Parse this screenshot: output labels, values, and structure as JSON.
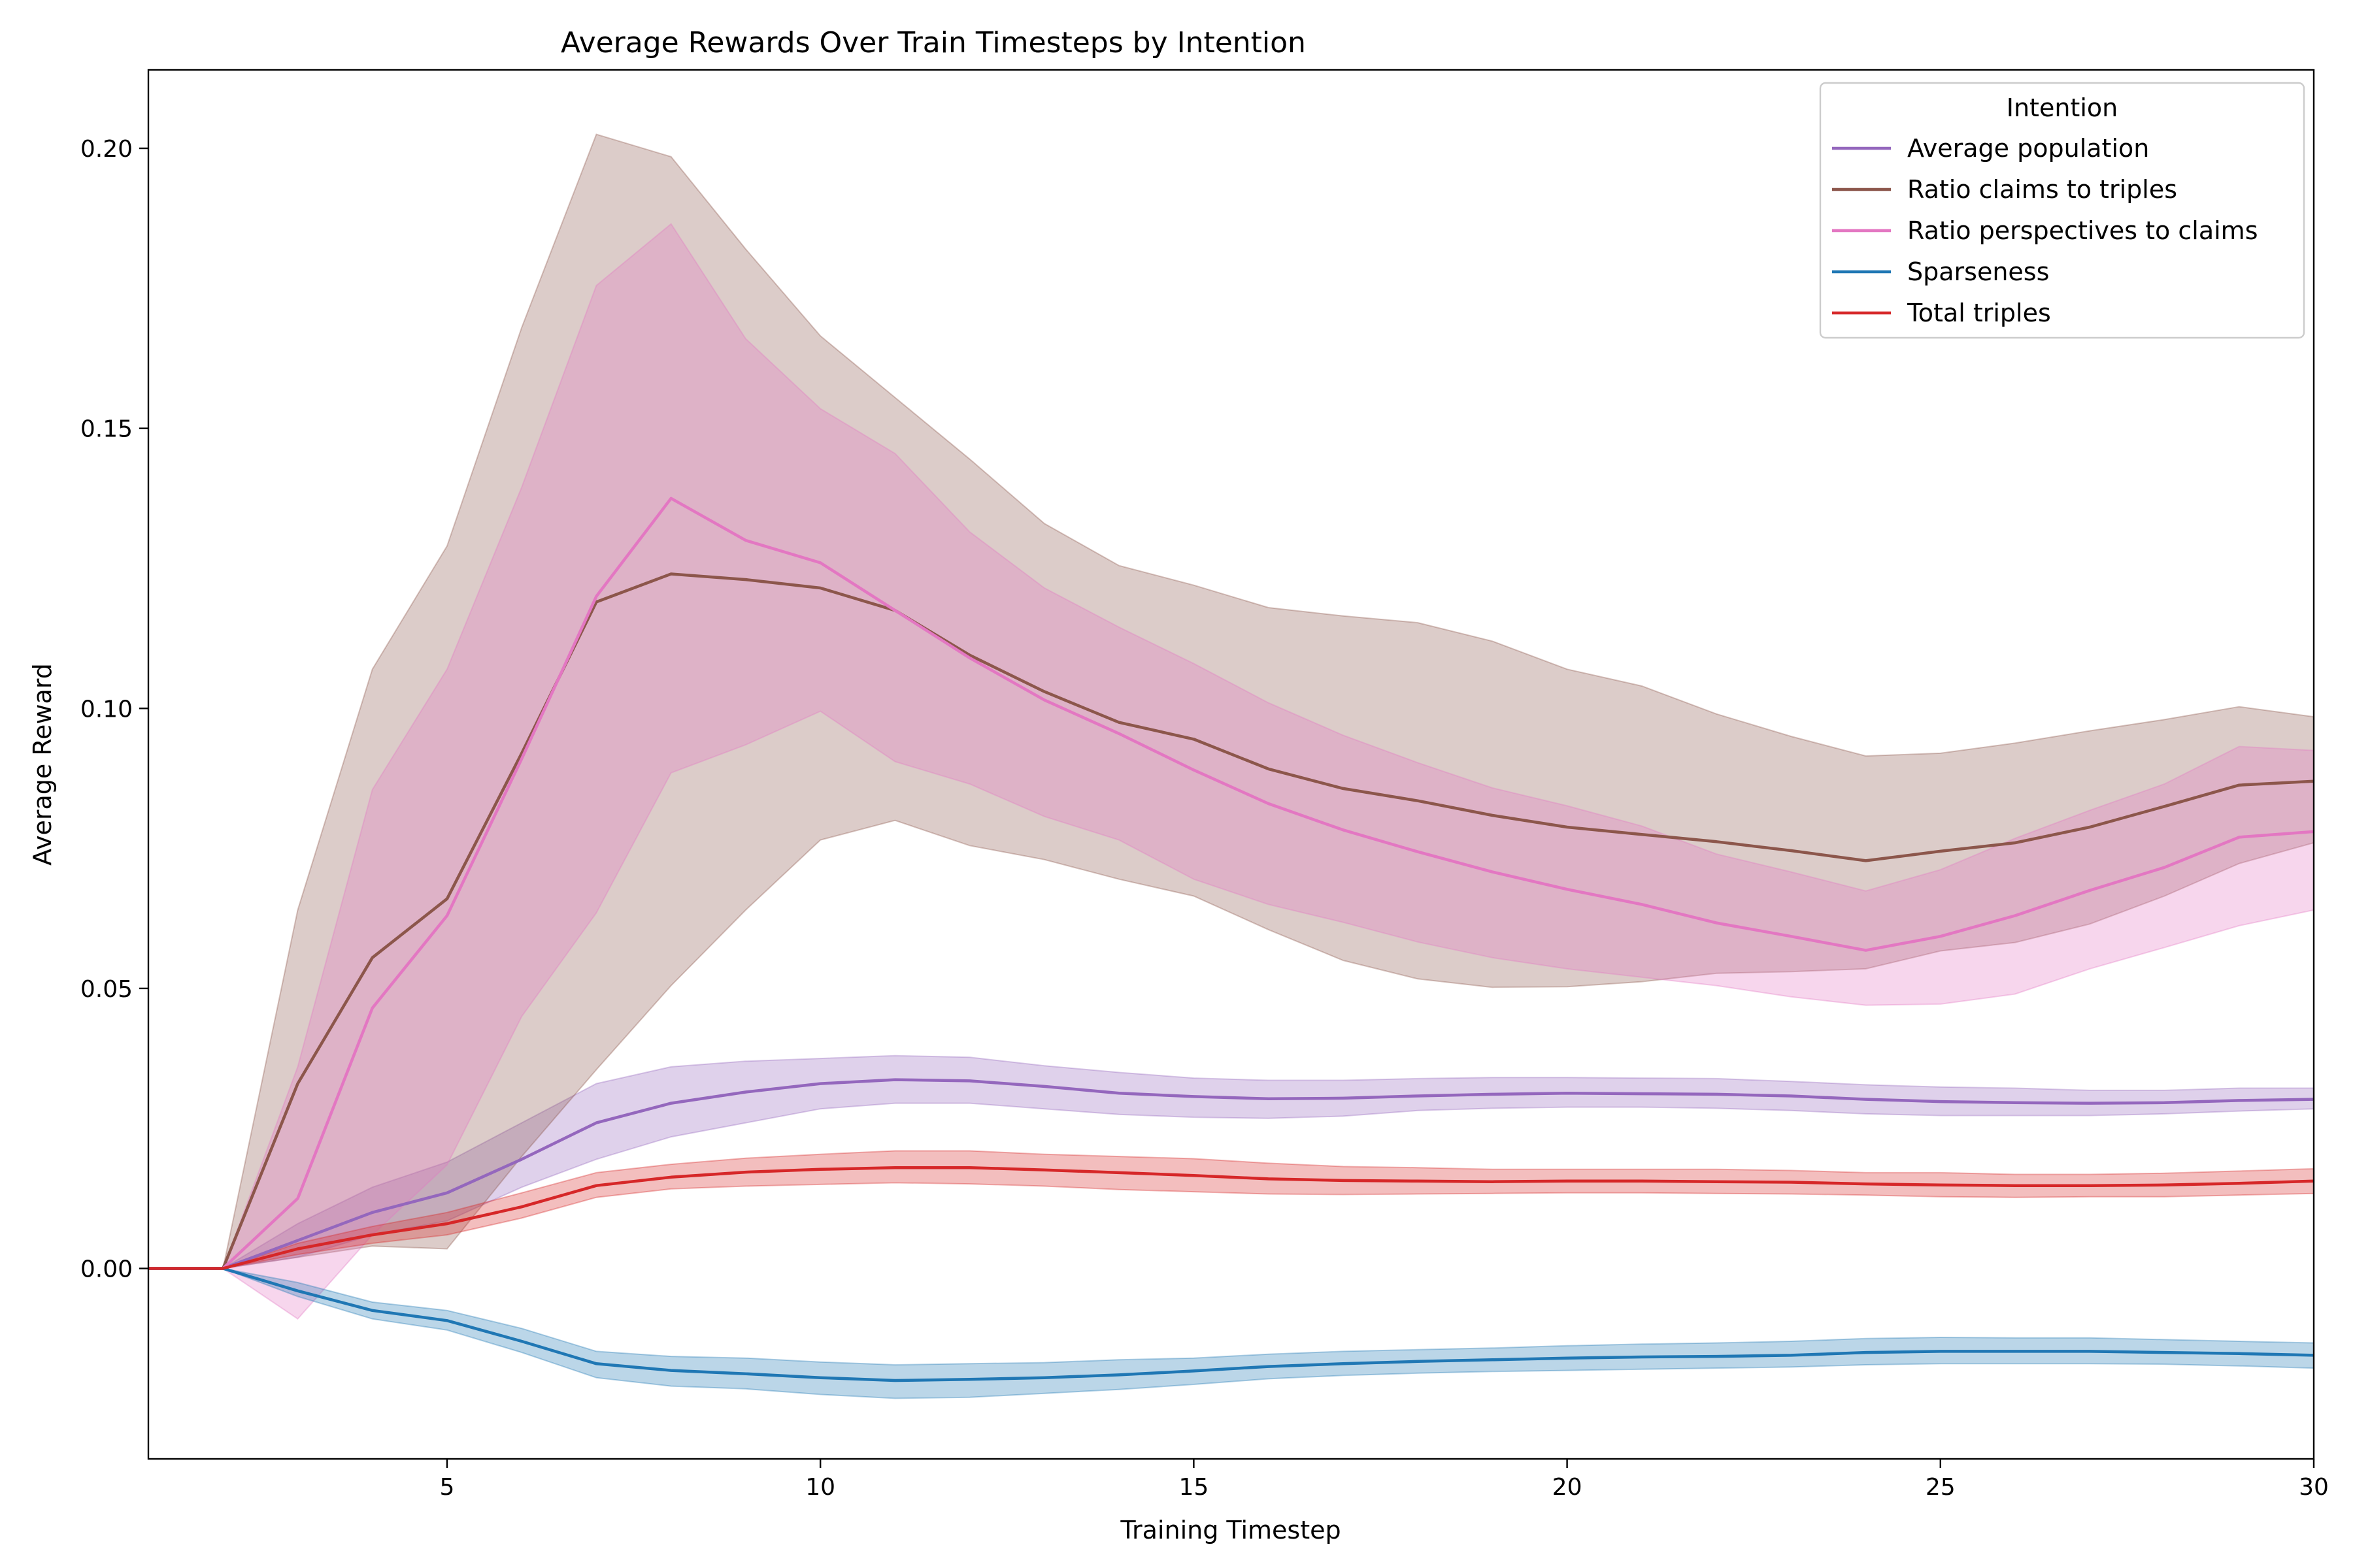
{
  "chart_data": {
    "type": "line",
    "title": "Average Rewards Over Train Timesteps by Intention",
    "xlabel": "Training Timestep",
    "ylabel": "Average Reward",
    "xlim": [
      1,
      30
    ],
    "ylim": [
      -0.034,
      0.214
    ],
    "xticks": [
      5,
      10,
      15,
      20,
      25,
      30
    ],
    "xtick_labels": [
      "5",
      "10",
      "15",
      "20",
      "25",
      "30"
    ],
    "yticks": [
      0.0,
      0.05,
      0.1,
      0.15,
      0.2
    ],
    "ytick_labels": [
      "0.00",
      "0.05",
      "0.10",
      "0.15",
      "0.20"
    ],
    "grid": false,
    "legend": {
      "title": "Intention",
      "placement": "top-right"
    },
    "x": [
      1,
      2,
      3,
      4,
      5,
      6,
      7,
      8,
      9,
      10,
      11,
      12,
      13,
      14,
      15,
      16,
      17,
      18,
      19,
      20,
      21,
      22,
      23,
      24,
      25,
      26,
      27,
      28,
      29,
      30
    ],
    "series": [
      {
        "name": "Average population",
        "color": "#9467bd",
        "values": [
          0,
          0,
          0.005,
          0.01,
          0.0135,
          0.0195,
          0.026,
          0.0295,
          0.0315,
          0.033,
          0.0337,
          0.0335,
          0.0325,
          0.0313,
          0.0307,
          0.0303,
          0.0304,
          0.0308,
          0.0311,
          0.0313,
          0.0312,
          0.0311,
          0.0308,
          0.0302,
          0.0298,
          0.0296,
          0.0295,
          0.0296,
          0.03,
          0.0302
        ],
        "lower": [
          0,
          0,
          0.002,
          0.006,
          0.0085,
          0.0145,
          0.0195,
          0.0235,
          0.026,
          0.0285,
          0.0295,
          0.0295,
          0.0285,
          0.0275,
          0.027,
          0.0268,
          0.0272,
          0.0282,
          0.0286,
          0.0288,
          0.0288,
          0.0286,
          0.0282,
          0.0276,
          0.0273,
          0.0273,
          0.0273,
          0.0276,
          0.0281,
          0.0285
        ],
        "upper": [
          0,
          0,
          0.008,
          0.0145,
          0.019,
          0.026,
          0.033,
          0.036,
          0.037,
          0.0375,
          0.038,
          0.0377,
          0.0362,
          0.035,
          0.034,
          0.0336,
          0.0336,
          0.0339,
          0.0341,
          0.0341,
          0.034,
          0.0339,
          0.0334,
          0.0328,
          0.0324,
          0.0322,
          0.0318,
          0.0318,
          0.0322,
          0.0322
        ]
      },
      {
        "name": "Ratio claims to triples",
        "color": "#8c564b",
        "values": [
          0,
          0,
          0.033,
          0.0555,
          0.066,
          0.092,
          0.119,
          0.124,
          0.123,
          0.1215,
          0.1175,
          0.1095,
          0.103,
          0.0975,
          0.0945,
          0.0892,
          0.0857,
          0.0835,
          0.0809,
          0.0788,
          0.0775,
          0.0762,
          0.0746,
          0.0728,
          0.0745,
          0.076,
          0.0788,
          0.0825,
          0.0863,
          0.087
        ],
        "lower": [
          0,
          0,
          0.002,
          0.004,
          0.0035,
          0.02,
          0.0355,
          0.0505,
          0.064,
          0.0765,
          0.08,
          0.0755,
          0.073,
          0.0695,
          0.0665,
          0.0605,
          0.055,
          0.0517,
          0.0502,
          0.0503,
          0.0512,
          0.0527,
          0.053,
          0.0535,
          0.0567,
          0.0582,
          0.0615,
          0.0665,
          0.0723,
          0.076
        ],
        "upper": [
          0,
          0,
          0.064,
          0.107,
          0.129,
          0.168,
          0.2025,
          0.1985,
          0.182,
          0.1665,
          0.1555,
          0.1445,
          0.133,
          0.1255,
          0.122,
          0.118,
          0.1165,
          0.1153,
          0.112,
          0.107,
          0.104,
          0.099,
          0.095,
          0.0915,
          0.092,
          0.0938,
          0.096,
          0.098,
          0.1003,
          0.0985
        ]
      },
      {
        "name": "Ratio perspectives to claims",
        "color": "#e377c2",
        "values": [
          0,
          0,
          0.0125,
          0.0465,
          0.063,
          0.091,
          0.12,
          0.1375,
          0.13,
          0.126,
          0.1175,
          0.109,
          0.1015,
          0.0955,
          0.089,
          0.083,
          0.0783,
          0.0744,
          0.0708,
          0.0677,
          0.065,
          0.0617,
          0.0593,
          0.0568,
          0.0593,
          0.063,
          0.0675,
          0.0716,
          0.077,
          0.078
        ],
        "lower": [
          0,
          0,
          -0.009,
          0.006,
          0.0185,
          0.045,
          0.0635,
          0.0885,
          0.0935,
          0.0995,
          0.0905,
          0.0865,
          0.0807,
          0.0765,
          0.0695,
          0.065,
          0.0618,
          0.0583,
          0.0555,
          0.0535,
          0.052,
          0.0505,
          0.0485,
          0.047,
          0.0472,
          0.049,
          0.0535,
          0.0573,
          0.0612,
          0.064
        ],
        "upper": [
          0,
          0,
          0.036,
          0.0855,
          0.107,
          0.1395,
          0.1755,
          0.1865,
          0.166,
          0.1535,
          0.1455,
          0.1315,
          0.1215,
          0.1145,
          0.108,
          0.101,
          0.0952,
          0.0903,
          0.0858,
          0.0826,
          0.079,
          0.074,
          0.0708,
          0.0674,
          0.0712,
          0.0768,
          0.0818,
          0.0865,
          0.0932,
          0.0925
        ]
      },
      {
        "name": "Sparseness",
        "color": "#1f77b4",
        "values": [
          0,
          0,
          -0.004,
          -0.0075,
          -0.0093,
          -0.013,
          -0.017,
          -0.0182,
          -0.0188,
          -0.0195,
          -0.02,
          -0.0198,
          -0.0195,
          -0.019,
          -0.0183,
          -0.0175,
          -0.017,
          -0.0166,
          -0.0163,
          -0.016,
          -0.0158,
          -0.0157,
          -0.0155,
          -0.015,
          -0.0148,
          -0.0148,
          -0.0148,
          -0.015,
          -0.0152,
          -0.0155
        ],
        "lower": [
          0,
          0,
          -0.005,
          -0.009,
          -0.011,
          -0.015,
          -0.0195,
          -0.021,
          -0.0215,
          -0.0225,
          -0.0232,
          -0.023,
          -0.0223,
          -0.0216,
          -0.0207,
          -0.0197,
          -0.0191,
          -0.0187,
          -0.0184,
          -0.0182,
          -0.018,
          -0.0178,
          -0.0176,
          -0.0172,
          -0.017,
          -0.017,
          -0.017,
          -0.0171,
          -0.0174,
          -0.0178
        ],
        "upper": [
          0,
          0,
          -0.0025,
          -0.006,
          -0.0075,
          -0.0107,
          -0.0148,
          -0.0157,
          -0.016,
          -0.0167,
          -0.0172,
          -0.017,
          -0.0168,
          -0.0163,
          -0.016,
          -0.0153,
          -0.0148,
          -0.0145,
          -0.0142,
          -0.0138,
          -0.0135,
          -0.0133,
          -0.013,
          -0.0125,
          -0.0123,
          -0.0124,
          -0.0124,
          -0.0127,
          -0.013,
          -0.0133
        ]
      },
      {
        "name": "Total triples",
        "color": "#d62728",
        "values": [
          0,
          0,
          0.0035,
          0.006,
          0.008,
          0.011,
          0.0148,
          0.0163,
          0.0172,
          0.0177,
          0.018,
          0.018,
          0.0176,
          0.0171,
          0.0166,
          0.016,
          0.0157,
          0.0156,
          0.0155,
          0.0156,
          0.0156,
          0.0155,
          0.0154,
          0.0151,
          0.0149,
          0.0148,
          0.0148,
          0.0149,
          0.0152,
          0.0156
        ],
        "lower": [
          0,
          0,
          0.0025,
          0.0045,
          0.006,
          0.009,
          0.0127,
          0.0142,
          0.0147,
          0.015,
          0.0153,
          0.0151,
          0.0147,
          0.0141,
          0.0137,
          0.0133,
          0.0132,
          0.0133,
          0.0134,
          0.0135,
          0.0135,
          0.0134,
          0.0133,
          0.0131,
          0.0128,
          0.0127,
          0.0128,
          0.0128,
          0.0131,
          0.0134
        ],
        "upper": [
          0,
          0,
          0.0045,
          0.0075,
          0.01,
          0.0135,
          0.0171,
          0.0186,
          0.0197,
          0.0204,
          0.021,
          0.021,
          0.0204,
          0.02,
          0.0196,
          0.0188,
          0.0182,
          0.018,
          0.0177,
          0.0177,
          0.0177,
          0.0177,
          0.0175,
          0.0171,
          0.0171,
          0.0168,
          0.0168,
          0.017,
          0.0174,
          0.0178
        ]
      }
    ]
  }
}
